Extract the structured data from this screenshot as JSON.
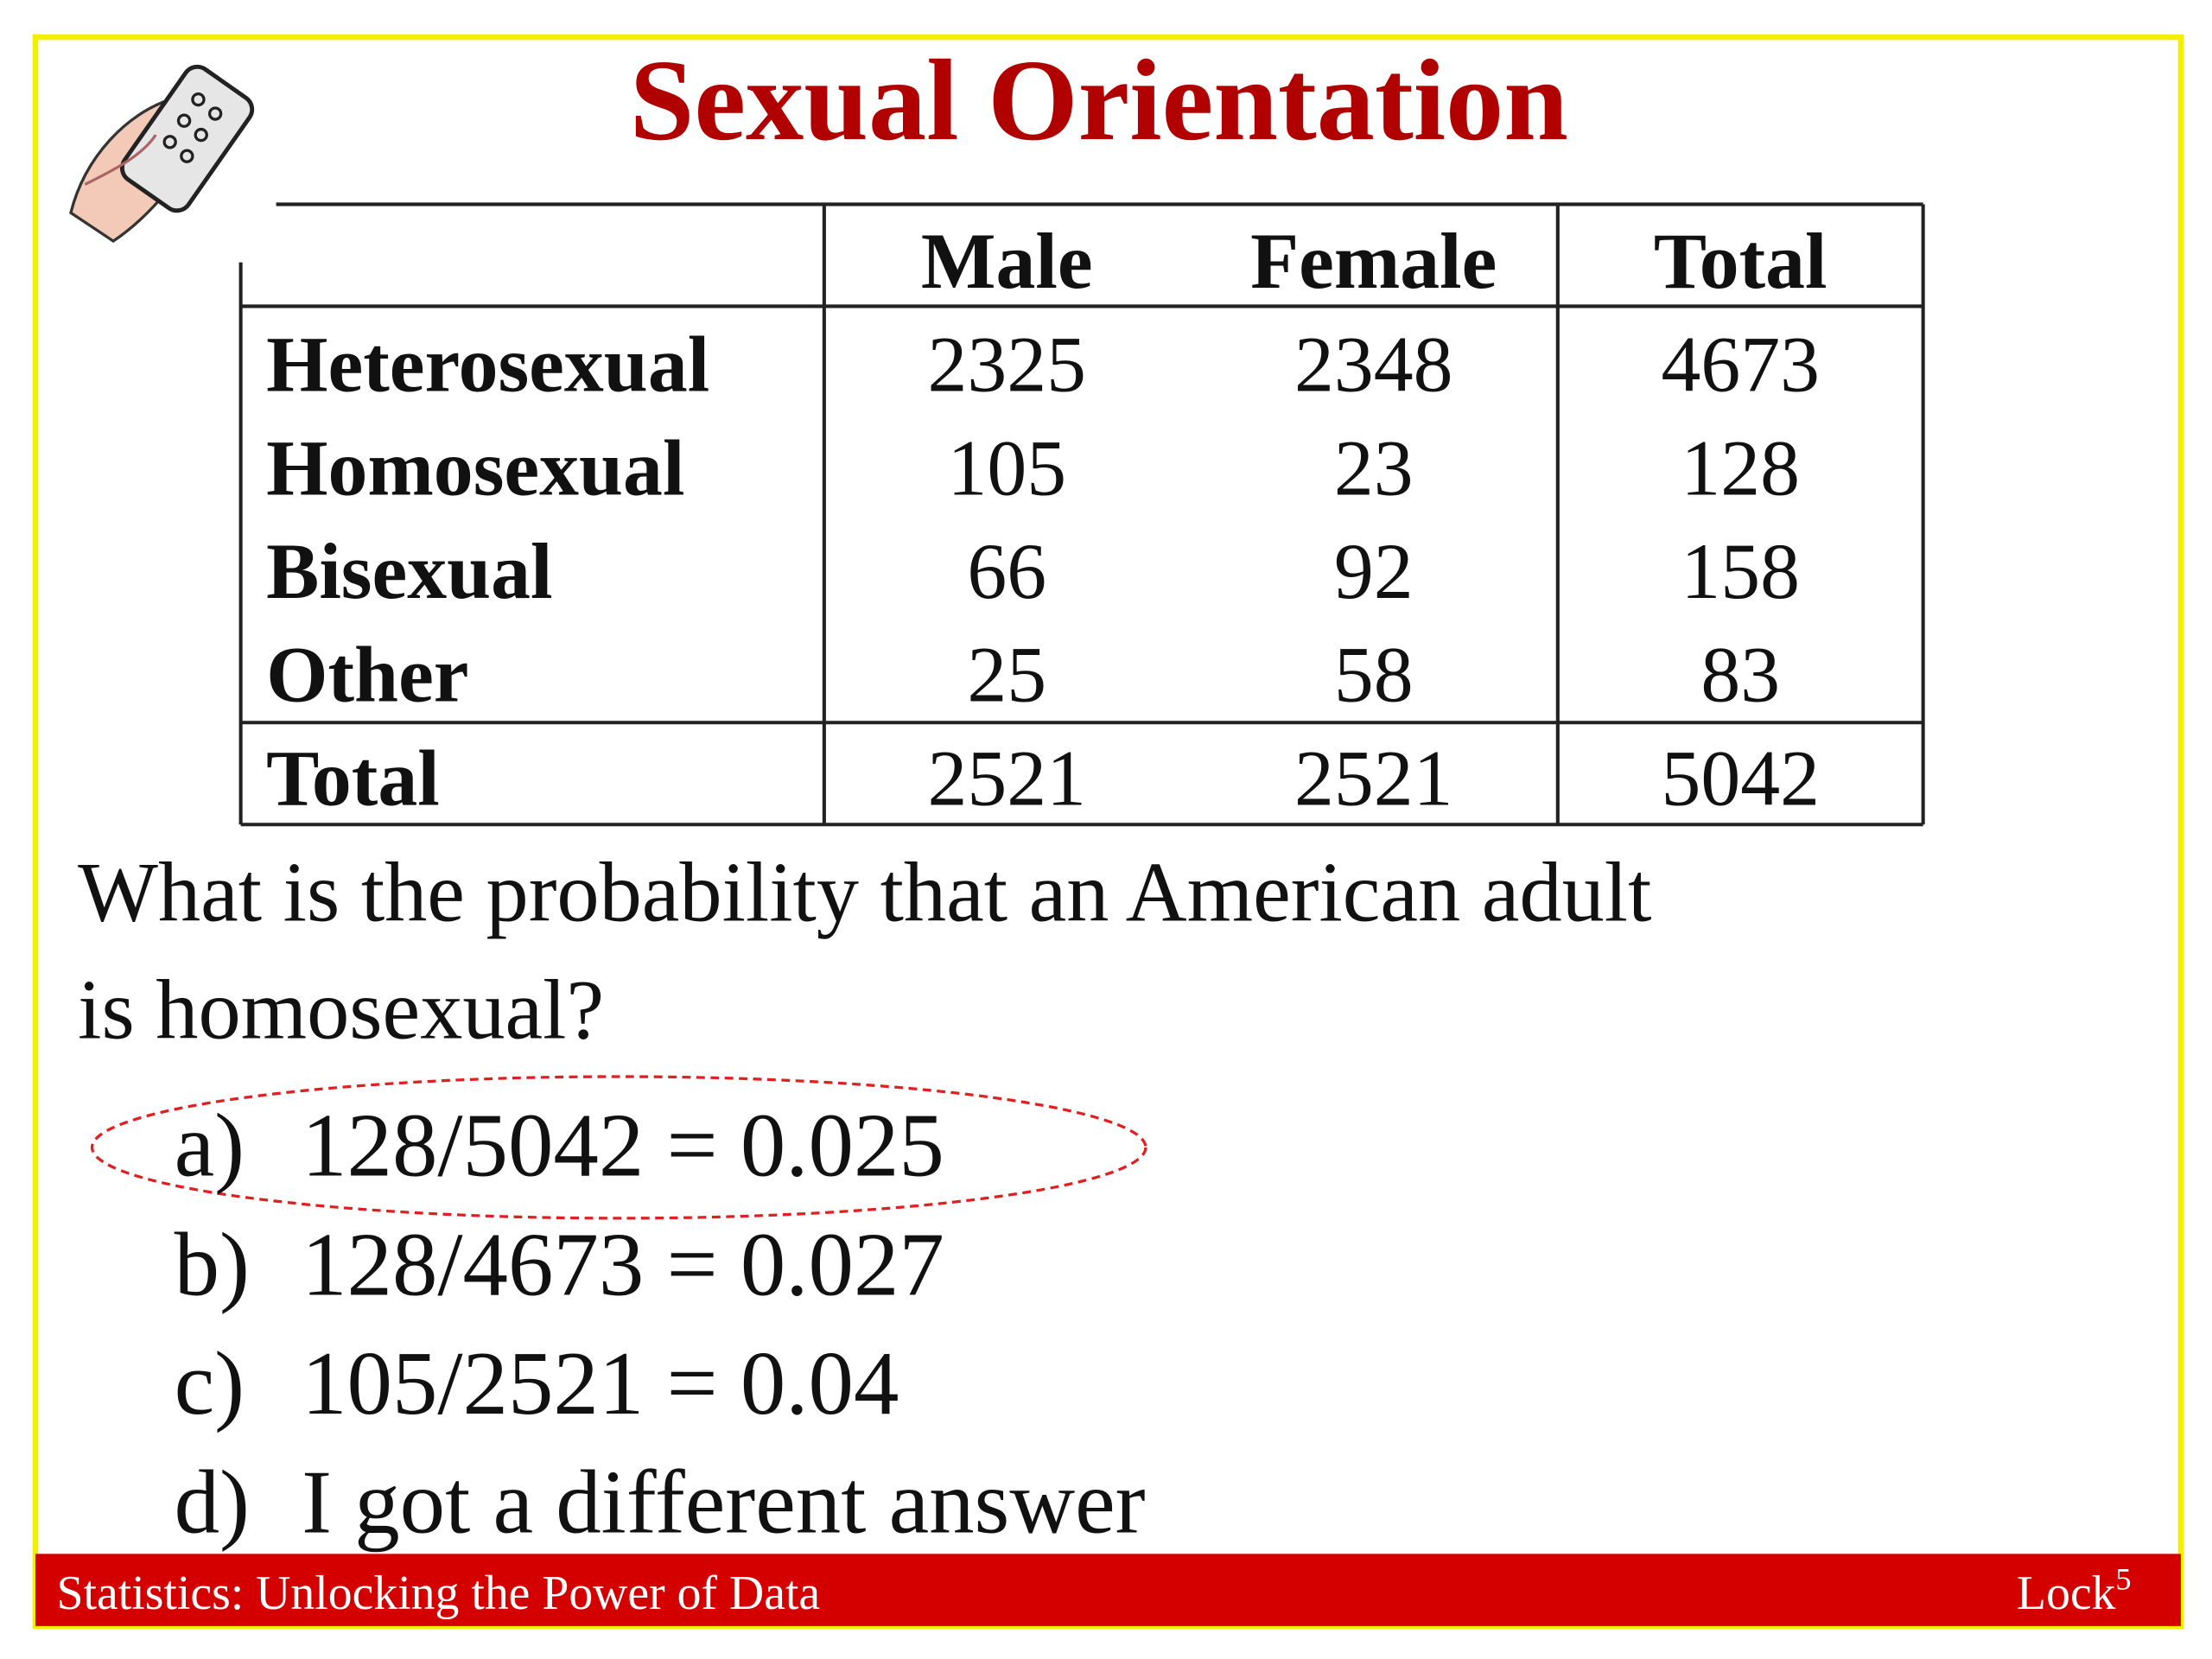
{
  "header": {
    "title": "Sexual Orientation"
  },
  "table": {
    "columns": [
      "Male",
      "Female",
      "Total"
    ],
    "rows": [
      [
        "Heterosexual",
        2325,
        2348,
        4673
      ],
      [
        "Homosexual",
        105,
        23,
        128
      ],
      [
        "Bisexual",
        66,
        92,
        158
      ],
      [
        "Other",
        25,
        58,
        83
      ]
    ],
    "total": [
      "Total",
      2521,
      2521,
      5042
    ]
  },
  "question": {
    "lines": [
      "What is the probability that an American adult",
      "is homosexual?"
    ]
  },
  "options": [
    {
      "letter": "a)",
      "text": "128/5042 = 0.025"
    },
    {
      "letter": "b)",
      "text": "128/4673 = 0.027"
    },
    {
      "letter": "c)",
      "text": "105/2521 = 0.04"
    },
    {
      "letter": "d)",
      "text": "I got a different answer"
    }
  ],
  "footer": {
    "left": "Statistics: Unlocking the Power of Data",
    "right": "Lock",
    "superscript": "5"
  }
}
